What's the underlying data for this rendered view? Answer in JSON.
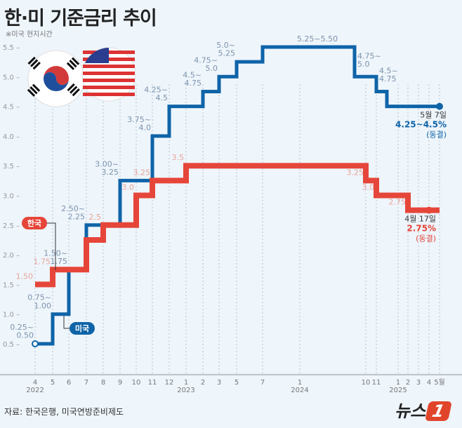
{
  "title": "한·미 기준금리 추이",
  "note": "※미국 현지시간",
  "source": "자료: 한국은행, 미국연방준비제도",
  "logo": {
    "text": "뉴스",
    "mark": "1"
  },
  "colors": {
    "us": "#0f64a8",
    "korea": "#e6463a",
    "us_label": "#7d93ad",
    "korea_label": "#e9a39a"
  },
  "chart_data": {
    "type": "line",
    "step": true,
    "ylim": [
      0.5,
      5.5
    ],
    "yticks": [
      "0.5",
      "1.0",
      "1.5",
      "2.0",
      "2.5",
      "3.0",
      "3.5",
      "4.0",
      "4.5",
      "5.0",
      "5.5"
    ],
    "xticks": [
      {
        "date": "2022-04",
        "label": "4",
        "year": "2022"
      },
      {
        "date": "2022-05",
        "label": "5"
      },
      {
        "date": "2022-06",
        "label": "6"
      },
      {
        "date": "2022-07",
        "label": "7"
      },
      {
        "date": "2022-08",
        "label": "8"
      },
      {
        "date": "2022-09",
        "label": "9"
      },
      {
        "date": "2022-10",
        "label": "10"
      },
      {
        "date": "2022-11",
        "label": "11"
      },
      {
        "date": "2022-12",
        "label": "12"
      },
      {
        "date": "2023-01",
        "label": "1",
        "year": "2023"
      },
      {
        "date": "2023-02",
        "label": "2"
      },
      {
        "date": "2023-03",
        "label": "3"
      },
      {
        "date": "2023-05",
        "label": "5"
      },
      {
        "date": "2023-07",
        "label": "7"
      },
      {
        "date": "2024-01",
        "label": "1",
        "year": "2024"
      },
      {
        "date": "2024-10",
        "label": "10"
      },
      {
        "date": "2024-11",
        "label": "11"
      },
      {
        "date": "2025-01",
        "label": "1",
        "year": "2025"
      },
      {
        "date": "2025-02",
        "label": "2"
      },
      {
        "date": "2025-03",
        "label": "3"
      },
      {
        "date": "2025-04",
        "label": "4"
      },
      {
        "date": "2025-05",
        "label": "5월"
      }
    ],
    "series": [
      {
        "name": "미국",
        "key": "us",
        "points": [
          {
            "date": "2022-04",
            "value": 0.5,
            "label": "0.25~\n0.50"
          },
          {
            "date": "2022-05",
            "value": 1.0,
            "label": "0.75~\n1.00"
          },
          {
            "date": "2022-06",
            "value": 1.75,
            "label": "1.50~\n1.75"
          },
          {
            "date": "2022-07",
            "value": 2.5,
            "label": "2.50~\n2.25"
          },
          {
            "date": "2022-09",
            "value": 3.25,
            "label": "3.00~\n3.25"
          },
          {
            "date": "2022-11",
            "value": 4.0,
            "label": "3.75~\n4.0"
          },
          {
            "date": "2022-12",
            "value": 4.5,
            "label": "4.25~\n4.5"
          },
          {
            "date": "2023-02",
            "value": 4.75,
            "label": "4.5~\n4.75"
          },
          {
            "date": "2023-03",
            "value": 5.0,
            "label": "4.75~\n5.0"
          },
          {
            "date": "2023-05",
            "value": 5.25,
            "label": "5.0~\n5.25"
          },
          {
            "date": "2023-07",
            "value": 5.5,
            "label": "5.25~5.50"
          },
          {
            "date": "2024-09",
            "value": 5.0,
            "label": "4.75~\n5.0"
          },
          {
            "date": "2024-11",
            "value": 4.75,
            "label": "4.5~\n4.75"
          },
          {
            "date": "2024-12",
            "value": 4.5,
            "label": ""
          },
          {
            "date": "2025-05",
            "value": 4.5,
            "label": ""
          }
        ],
        "callout": {
          "date": "5월 7일",
          "rate": "4.25~4.5%",
          "status": "(동결)"
        }
      },
      {
        "name": "한국",
        "key": "korea",
        "points": [
          {
            "date": "2022-04",
            "value": 1.5,
            "label": "1.50"
          },
          {
            "date": "2022-05",
            "value": 1.75,
            "label": "1.75"
          },
          {
            "date": "2022-07",
            "value": 2.25,
            "label": ""
          },
          {
            "date": "2022-08",
            "value": 2.5,
            "label": "2.5"
          },
          {
            "date": "2022-10",
            "value": 3.0,
            "label": "3.0"
          },
          {
            "date": "2022-11",
            "value": 3.25,
            "label": "3.25"
          },
          {
            "date": "2023-01",
            "value": 3.5,
            "label": "3.5"
          },
          {
            "date": "2024-10",
            "value": 3.25,
            "label": "3.25"
          },
          {
            "date": "2024-11",
            "value": 3.0,
            "label": "3.0"
          },
          {
            "date": "2025-02",
            "value": 2.75,
            "label": "2.75"
          },
          {
            "date": "2025-05",
            "value": 2.75,
            "label": ""
          }
        ],
        "callout": {
          "date": "4월 17일",
          "rate": "2.75%",
          "status": "(동결)"
        }
      }
    ]
  }
}
